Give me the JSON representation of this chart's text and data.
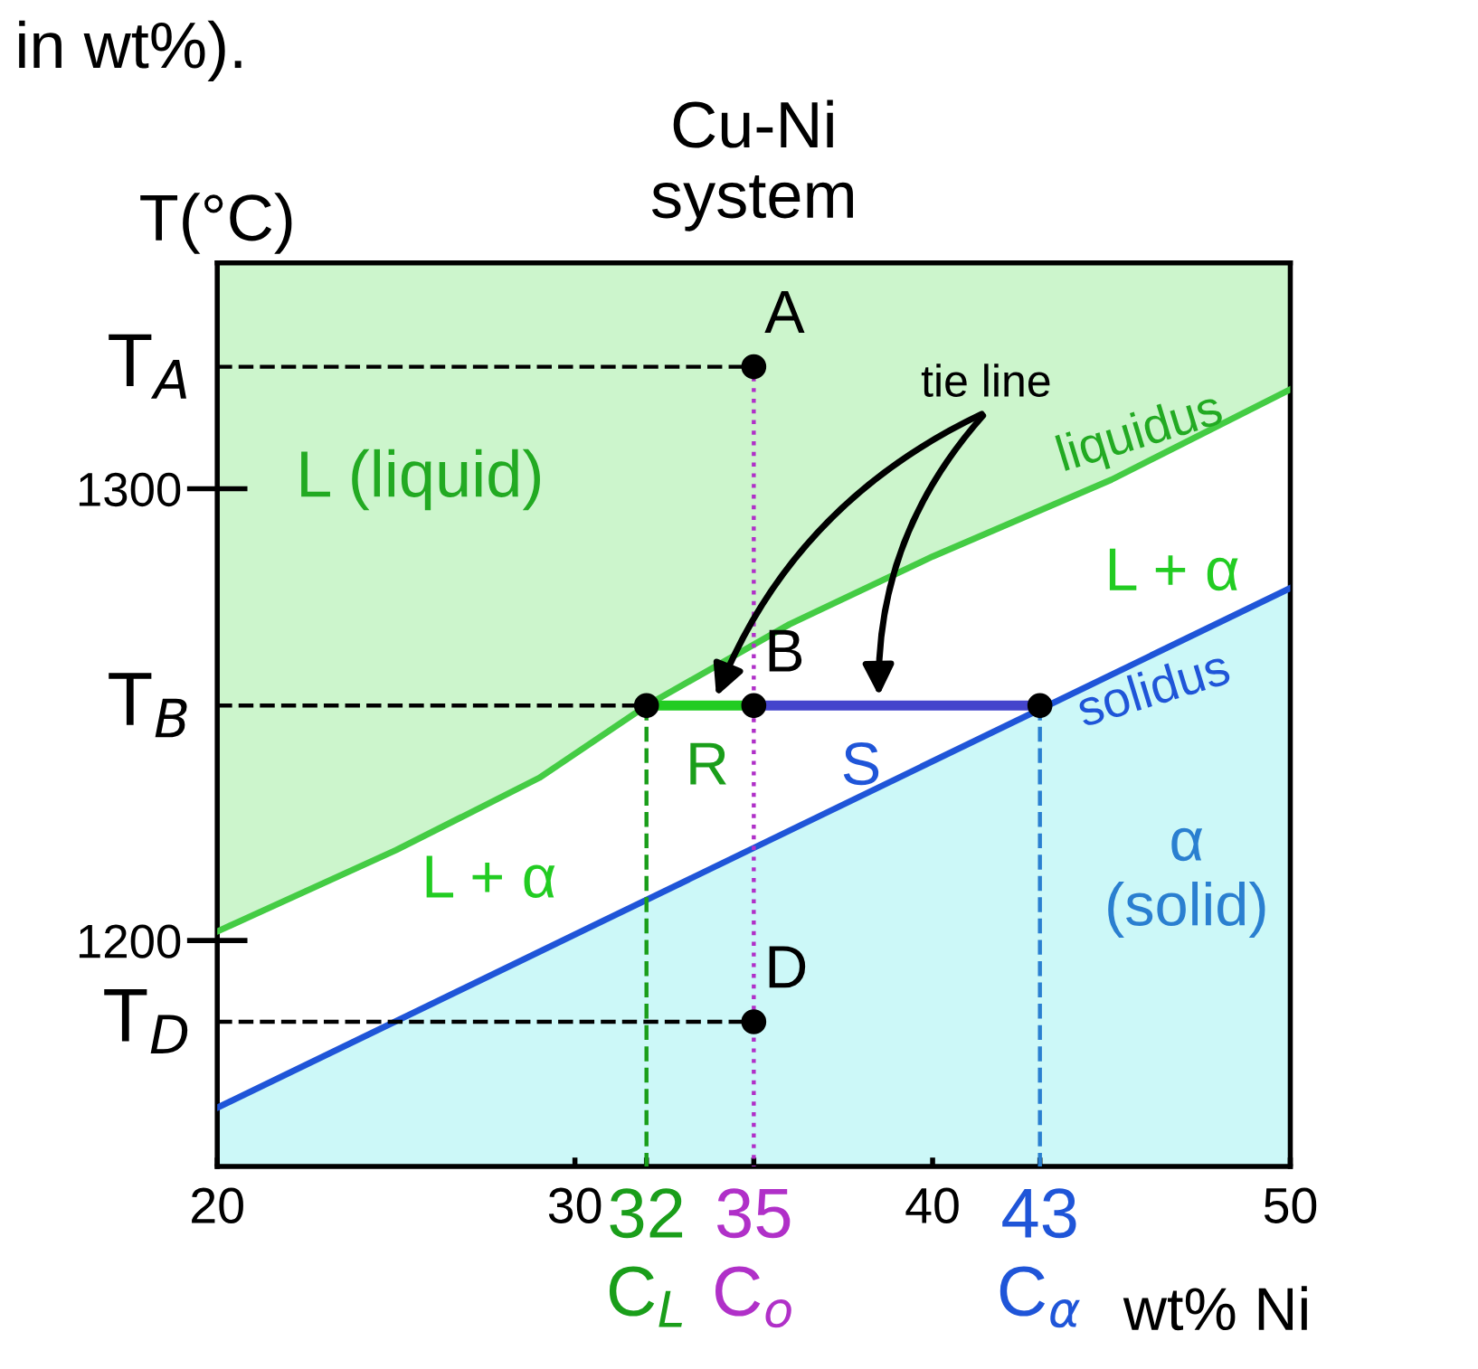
{
  "chart_data": {
    "type": "line",
    "title": "Cu-Ni\nsystem",
    "xlabel": "wt% Ni",
    "ylabel": "T(°C)",
    "xlim": [
      20,
      50
    ],
    "ylim": [
      1150,
      1350
    ],
    "xticks": [
      20,
      30,
      {
        "value": 32,
        "label": "32"
      },
      {
        "value": 35,
        "label": "35"
      },
      40,
      {
        "value": 43,
        "label": "43"
      },
      50
    ],
    "yticks": [
      1200,
      1300
    ],
    "grid": false,
    "legend": false,
    "bands": [
      {
        "axis": "y",
        "from": 1150,
        "to": 1350,
        "color": "#ccf5cc"
      }
    ],
    "series": [
      {
        "type": "area",
        "color": "#44cc44",
        "x": [
          20,
          25,
          29,
          32,
          36,
          40,
          45,
          50
        ],
        "values": [
          1202,
          1220,
          1236,
          1252,
          1270,
          1285,
          1302,
          1322
        ]
      },
      {
        "type": "area",
        "color": "#1f55d8",
        "x": [
          20,
          50
        ],
        "values": [
          1163,
          1278
        ]
      },
      {
        "color": "#000000",
        "line_style": "dashed",
        "x": [
          20,
          35
        ],
        "values": [
          1327,
          1327
        ]
      },
      {
        "color": "#000000",
        "line_style": "dashed",
        "x": [
          20,
          32
        ],
        "values": [
          1252,
          1252
        ]
      },
      {
        "color": "#000000",
        "line_style": "dashed",
        "x": [
          20,
          35
        ],
        "values": [
          1182,
          1182
        ]
      },
      {
        "color": "#1a9e1a",
        "line_style": "dashed",
        "x": [
          32,
          32
        ],
        "values": [
          1252,
          1150
        ]
      },
      {
        "color": "#2a7fd0",
        "line_style": "dashed",
        "x": [
          43,
          43
        ],
        "values": [
          1252,
          1150
        ]
      },
      {
        "color": "#b030c8",
        "line_style": "dotted",
        "x": [
          35,
          35
        ],
        "values": [
          1327,
          1150
        ]
      },
      {
        "color": "#22cc22",
        "x": [
          32,
          35
        ],
        "values": [
          1252,
          1252
        ]
      },
      {
        "color": "#4444cc",
        "x": [
          35,
          43
        ],
        "values": [
          1252,
          1252
        ]
      },
      {
        "type": "scatter",
        "color": "#000000",
        "x": [
          35,
          35,
          35,
          32,
          43
        ],
        "values": [
          1327,
          1252,
          1182,
          1252,
          1252
        ]
      }
    ],
    "annotations": [
      "in wt%).",
      "L (liquid)",
      "liquidus",
      "L + α",
      "solidus",
      "α\n(solid)",
      "L + α",
      "tie line",
      "R",
      "S",
      "C$_{L}$",
      "C$_{o}$",
      "C$_{α}$",
      "A",
      "B",
      "D",
      "T$_{A}$",
      "T$_{B}$",
      "T$_{D}$"
    ]
  }
}
